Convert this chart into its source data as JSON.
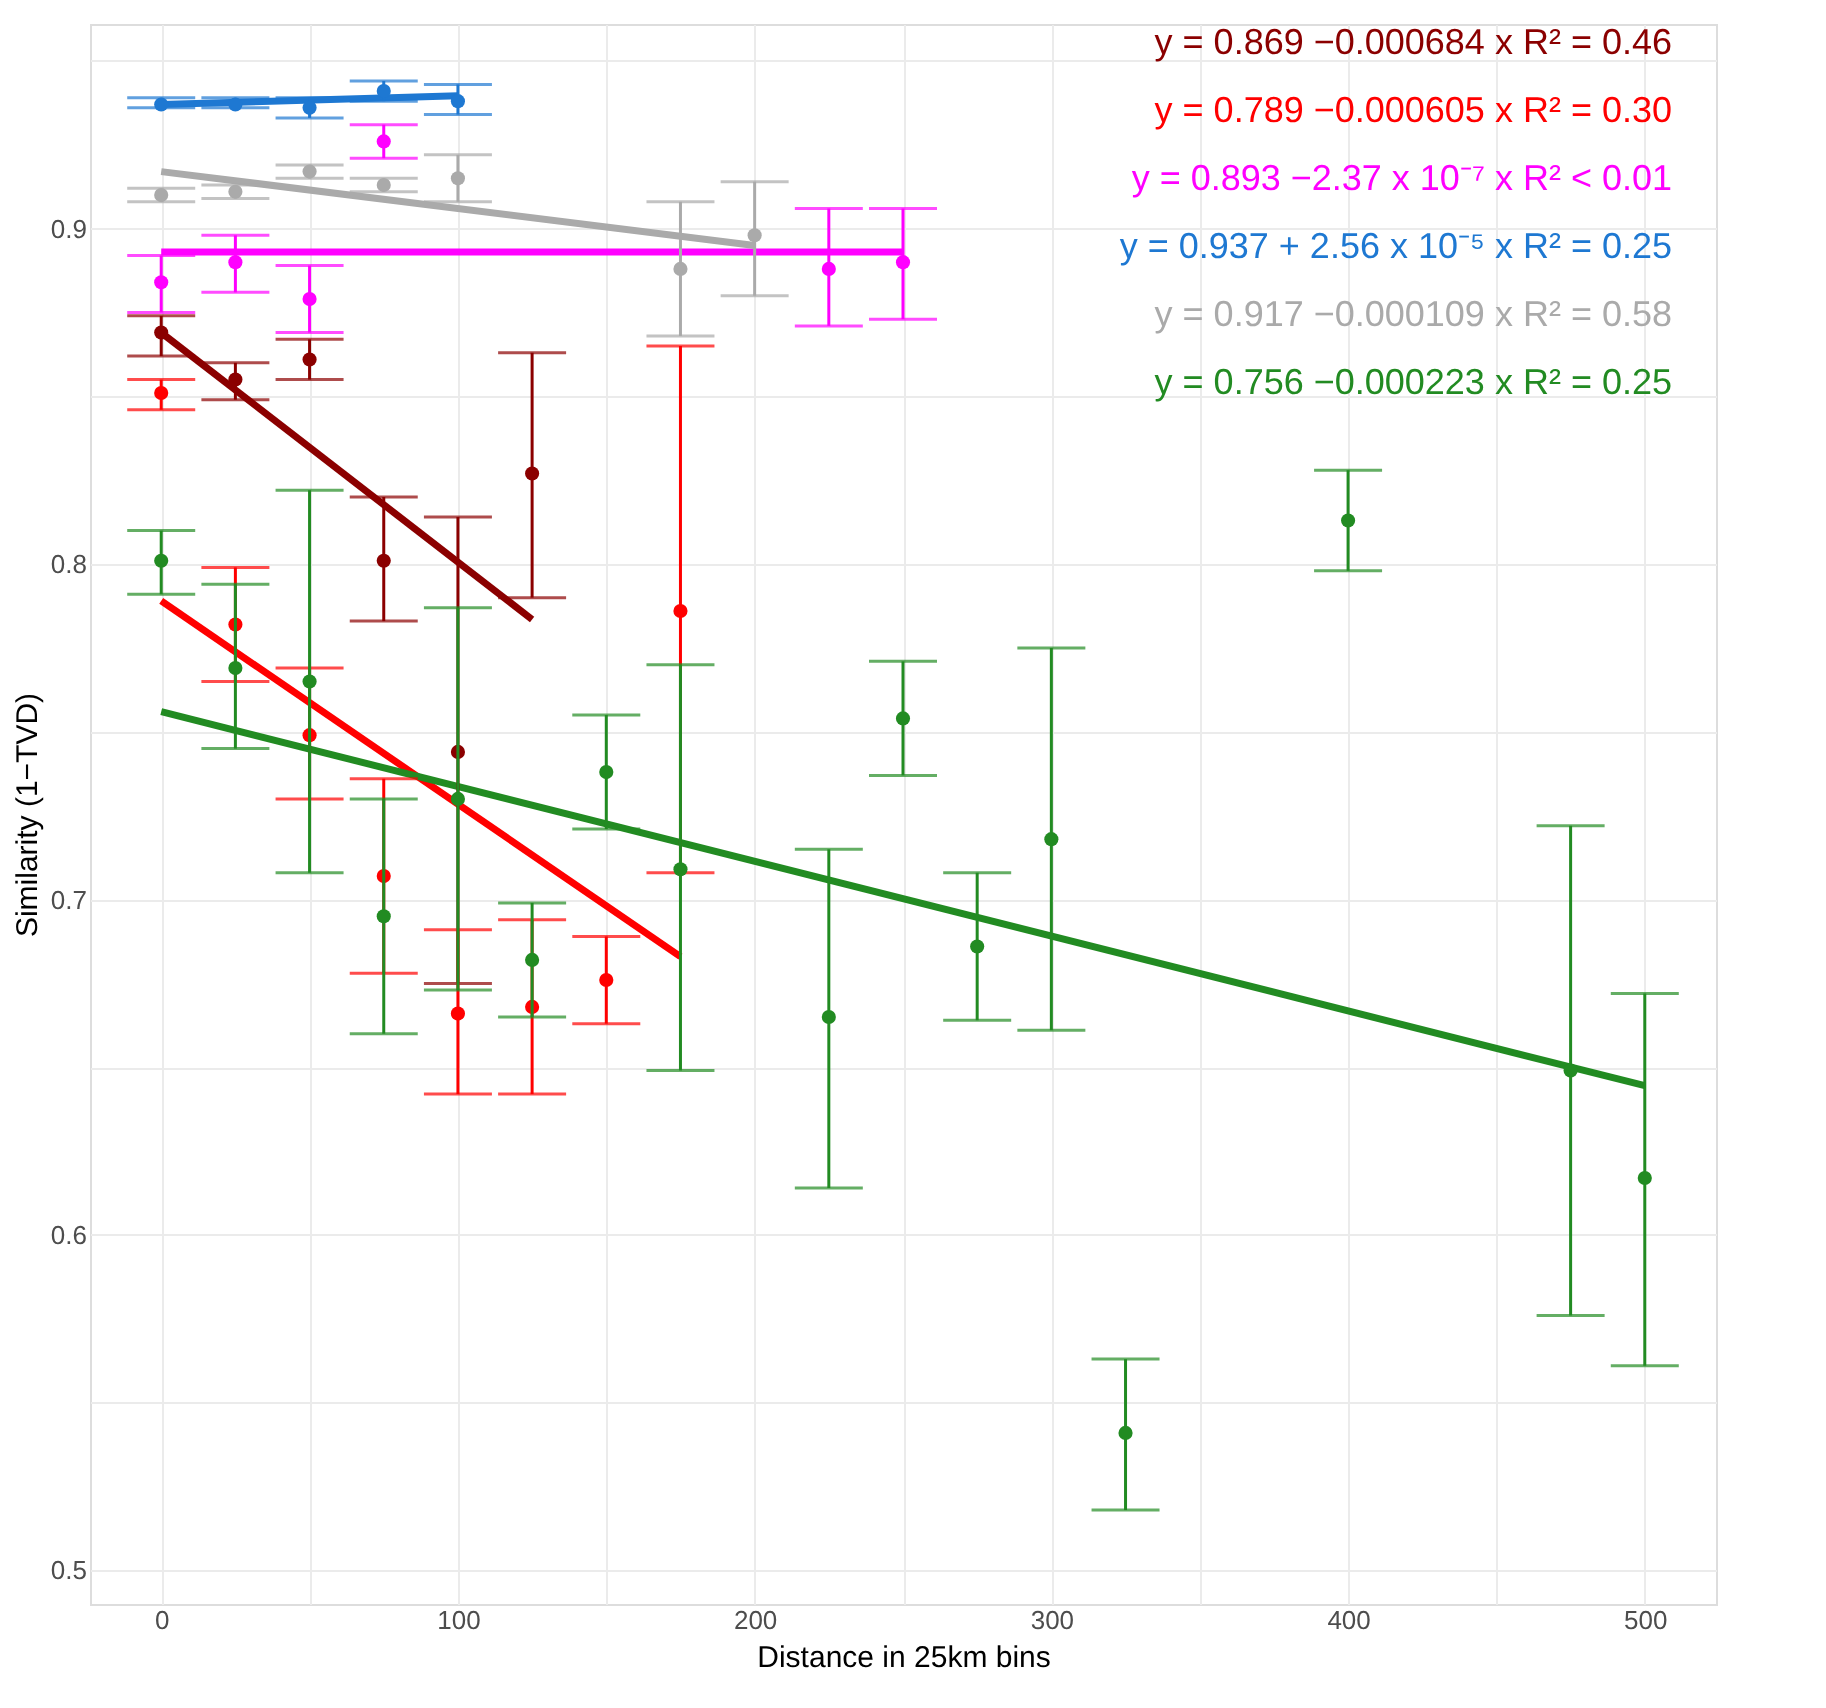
{
  "chart_data": {
    "type": "scatter",
    "xlabel": "Distance in 25km bins",
    "ylabel": "Similarity (1−TVD)",
    "xlim": [
      -24,
      524
    ],
    "ylim": [
      0.49,
      0.961
    ],
    "xticks": [
      0,
      {
        "value": 50,
        "label": null
      },
      100,
      {
        "value": 150,
        "label": null
      },
      200,
      {
        "value": 250,
        "label": null
      },
      300,
      {
        "value": 350,
        "label": null
      },
      400,
      {
        "value": 450,
        "label": null
      },
      500
    ],
    "yticks": [
      0.5,
      {
        "value": 0.55,
        "label": null
      },
      0.6,
      {
        "value": 0.65,
        "label": null
      },
      0.7,
      {
        "value": 0.75,
        "label": null
      },
      0.8,
      {
        "value": 0.85,
        "label": null
      },
      0.9,
      {
        "value": 0.95,
        "label": null
      }
    ],
    "grid": true,
    "marker": "circle",
    "annotations": [
      "y = 0.869 −0.000684 x   R² = 0.46",
      "y = 0.789 −0.000605 x   R² = 0.30",
      "y = 0.893 −2.37 x 10⁻⁷ x   R² < 0.01",
      "y = 0.937 + 2.56 x 10⁻⁵ x   R² = 0.25",
      "y = 0.917 −0.000109 x   R² = 0.58",
      "y = 0.756 −0.000223 x   R² = 0.25"
    ],
    "series": [
      {
        "color": "#8b0000",
        "x": [
          0,
          25,
          50,
          75,
          100,
          125
        ],
        "values": [
          0.869,
          0.855,
          0.861,
          0.801,
          0.744,
          0.827
        ],
        "errors": [
          [
            0.862,
            0.874
          ],
          [
            0.849,
            0.86
          ],
          [
            0.855,
            0.867
          ],
          [
            0.783,
            0.82
          ],
          [
            0.675,
            0.814
          ],
          [
            0.79,
            0.863
          ]
        ]
      },
      {
        "color": "#ff0000",
        "x": [
          0,
          25,
          50,
          75,
          100,
          125,
          150,
          175
        ],
        "values": [
          0.851,
          0.782,
          0.749,
          0.707,
          0.666,
          0.668,
          0.676,
          0.786
        ],
        "errors": [
          [
            0.846,
            0.855
          ],
          [
            0.765,
            0.799
          ],
          [
            0.73,
            0.769
          ],
          [
            0.678,
            0.736
          ],
          [
            0.642,
            0.691
          ],
          [
            0.642,
            0.694
          ],
          [
            0.663,
            0.689
          ],
          [
            0.708,
            0.865
          ]
        ]
      },
      {
        "color": "#ff00ff",
        "x": [
          0,
          25,
          50,
          75,
          225,
          250
        ],
        "values": [
          0.884,
          0.89,
          0.879,
          0.926,
          0.888,
          0.89
        ],
        "errors": [
          [
            0.875,
            0.892
          ],
          [
            0.881,
            0.898
          ],
          [
            0.869,
            0.889
          ],
          [
            0.921,
            0.931
          ],
          [
            0.871,
            0.906
          ],
          [
            0.873,
            0.906
          ]
        ]
      },
      {
        "color": "#1e78d2",
        "x": [
          0,
          25,
          50,
          75,
          100
        ],
        "values": [
          0.937,
          0.937,
          0.936,
          0.941,
          0.938
        ],
        "errors": [
          [
            0.936,
            0.939
          ],
          [
            0.936,
            0.939
          ],
          [
            0.933,
            0.939
          ],
          [
            0.938,
            0.944
          ],
          [
            0.934,
            0.943
          ]
        ]
      },
      {
        "color": "#aaaaaa",
        "x": [
          0,
          25,
          50,
          75,
          100,
          175,
          200
        ],
        "values": [
          0.91,
          0.911,
          0.917,
          0.913,
          0.915,
          0.888,
          0.898
        ],
        "errors": [
          [
            0.908,
            0.912
          ],
          [
            0.909,
            0.913
          ],
          [
            0.915,
            0.919
          ],
          [
            0.911,
            0.915
          ],
          [
            0.908,
            0.922
          ],
          [
            0.868,
            0.908
          ],
          [
            0.88,
            0.914
          ]
        ]
      },
      {
        "color": "#228b22",
        "x": [
          0,
          25,
          50,
          75,
          100,
          125,
          150,
          175,
          225,
          250,
          275,
          300,
          325,
          400,
          475,
          500
        ],
        "values": [
          0.801,
          0.769,
          0.765,
          0.695,
          0.73,
          0.682,
          0.738,
          0.709,
          0.665,
          0.754,
          0.686,
          0.718,
          0.541,
          0.813,
          0.649,
          0.617
        ],
        "errors": [
          [
            0.791,
            0.81
          ],
          [
            0.745,
            0.794
          ],
          [
            0.708,
            0.822
          ],
          [
            0.66,
            0.73
          ],
          [
            0.673,
            0.787
          ],
          [
            0.665,
            0.699
          ],
          [
            0.721,
            0.755
          ],
          [
            0.649,
            0.77
          ],
          [
            0.614,
            0.715
          ],
          [
            0.737,
            0.771
          ],
          [
            0.664,
            0.708
          ],
          [
            0.661,
            0.775
          ],
          [
            0.518,
            0.563
          ],
          [
            0.798,
            0.828
          ],
          [
            0.576,
            0.722
          ],
          [
            0.561,
            0.672
          ]
        ]
      },
      {
        "type": "line",
        "marker": "none",
        "color": "#8b0000",
        "x": [
          0,
          125
        ],
        "values": [
          0.869,
          0.7835
        ]
      },
      {
        "type": "line",
        "marker": "none",
        "color": "#ff0000",
        "x": [
          0,
          175
        ],
        "values": [
          0.789,
          0.683
        ]
      },
      {
        "type": "line",
        "marker": "none",
        "color": "#ff00ff",
        "x": [
          0,
          250
        ],
        "values": [
          0.893,
          0.893
        ]
      },
      {
        "type": "line",
        "marker": "none",
        "color": "#1e78d2",
        "x": [
          0,
          100
        ],
        "values": [
          0.937,
          0.9396
        ]
      },
      {
        "type": "line",
        "marker": "none",
        "color": "#aaaaaa",
        "x": [
          0,
          200
        ],
        "values": [
          0.917,
          0.895
        ]
      },
      {
        "type": "line",
        "marker": "none",
        "color": "#228b22",
        "x": [
          0,
          500
        ],
        "values": [
          0.756,
          0.6445
        ]
      }
    ]
  }
}
